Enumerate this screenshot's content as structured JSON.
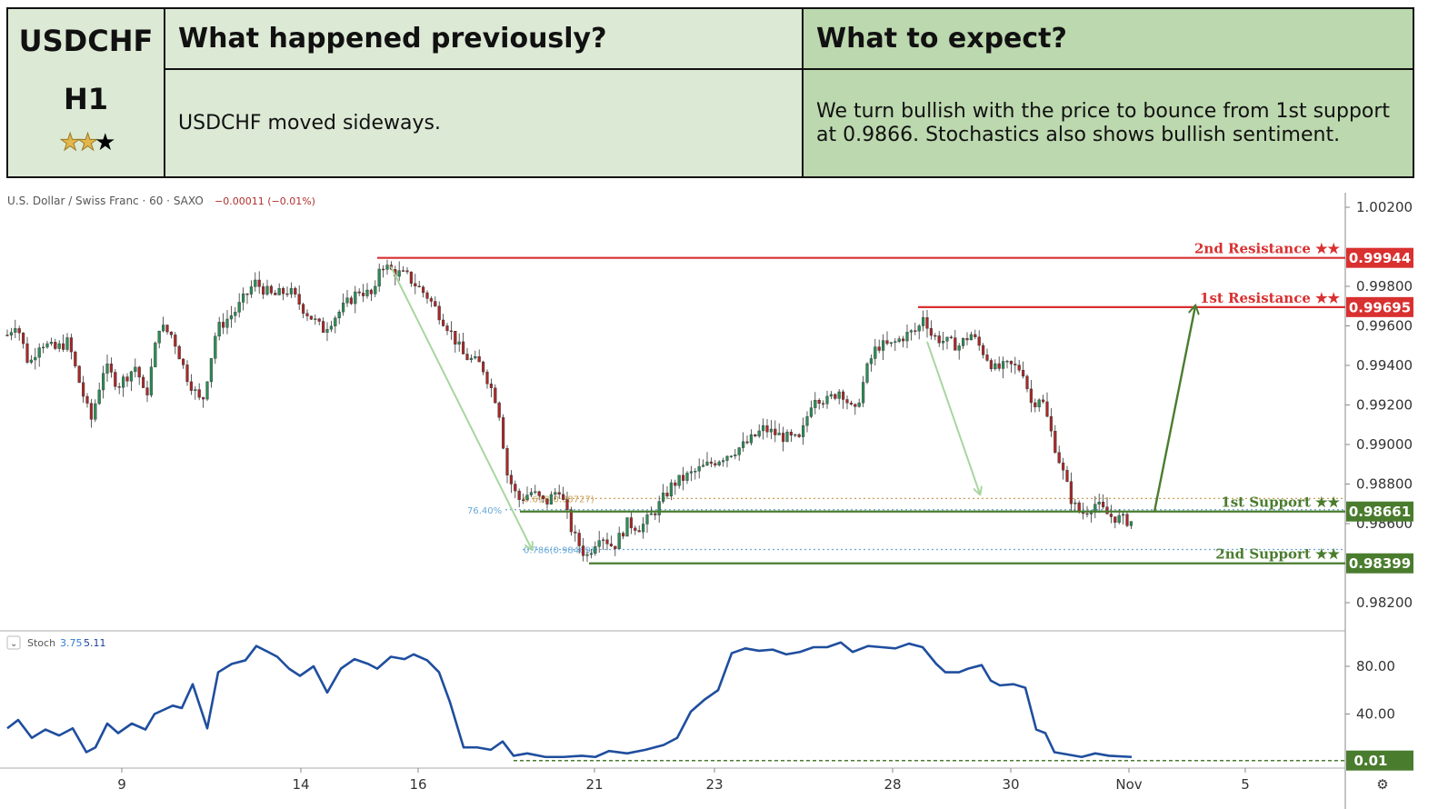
{
  "header": {
    "symbol": "USDCHF",
    "timeframe": "H1",
    "rating": {
      "filled": 2,
      "total": 3
    },
    "previous_title": "What happened previously?",
    "previous_text": "USDCHF moved sideways.",
    "expect_title": "What to expect?",
    "expect_text": "We turn bullish with the price to bounce from 1st support at 0.9866. Stochastics also shows bullish sentiment."
  },
  "chart_info": {
    "instrument": "U.S. Dollar / Swiss Franc · 60 · SAXO",
    "change": "−0.00011 (−0.01%)",
    "stoch_label": "Stoch",
    "stoch_k": "3.75",
    "stoch_d": "5.11",
    "settings_icon": "gear-icon"
  },
  "chart_data": [
    {
      "type": "candlestick",
      "x_labels": [
        "9",
        "14",
        "16",
        "21",
        "23",
        "28",
        "30",
        "Nov",
        "5"
      ],
      "y_ticks": [
        "1.00200",
        "0.99800",
        "0.99600",
        "0.99400",
        "0.99200",
        "0.99000",
        "0.98800",
        "0.98600",
        "0.98200"
      ],
      "ylim": [
        0.981,
        1.0025
      ],
      "price_path": [
        [
          0,
          0.995
        ],
        [
          18,
          0.9962
        ],
        [
          32,
          0.994
        ],
        [
          44,
          0.9952
        ],
        [
          60,
          0.9948
        ],
        [
          75,
          0.9952
        ],
        [
          85,
          0.9935
        ],
        [
          100,
          0.9912
        ],
        [
          115,
          0.994
        ],
        [
          130,
          0.993
        ],
        [
          150,
          0.994
        ],
        [
          160,
          0.9922
        ],
        [
          175,
          0.996
        ],
        [
          190,
          0.9955
        ],
        [
          205,
          0.9935
        ],
        [
          222,
          0.992
        ],
        [
          238,
          0.9958
        ],
        [
          260,
          0.9968
        ],
        [
          280,
          0.9982
        ],
        [
          300,
          0.9975
        ],
        [
          318,
          0.9978
        ],
        [
          335,
          0.9968
        ],
        [
          355,
          0.9958
        ],
        [
          375,
          0.9968
        ],
        [
          395,
          0.9978
        ],
        [
          412,
          0.9975
        ],
        [
          418,
          0.9992
        ],
        [
          430,
          0.9988
        ],
        [
          448,
          0.9985
        ],
        [
          470,
          0.9975
        ],
        [
          492,
          0.996
        ],
        [
          510,
          0.9945
        ],
        [
          530,
          0.994
        ],
        [
          548,
          0.992
        ],
        [
          558,
          0.9885
        ],
        [
          570,
          0.9872
        ],
        [
          585,
          0.9876
        ],
        [
          600,
          0.987
        ],
        [
          615,
          0.9878
        ],
        [
          630,
          0.9855
        ],
        [
          645,
          0.9843
        ],
        [
          660,
          0.9855
        ],
        [
          675,
          0.9848
        ],
        [
          690,
          0.986
        ],
        [
          705,
          0.9858
        ],
        [
          720,
          0.9866
        ],
        [
          740,
          0.988
        ],
        [
          760,
          0.9885
        ],
        [
          780,
          0.989
        ],
        [
          800,
          0.9895
        ],
        [
          820,
          0.99
        ],
        [
          840,
          0.9908
        ],
        [
          860,
          0.9904
        ],
        [
          880,
          0.9902
        ],
        [
          895,
          0.9925
        ],
        [
          910,
          0.9922
        ],
        [
          925,
          0.9928
        ],
        [
          940,
          0.9915
        ],
        [
          955,
          0.994
        ],
        [
          965,
          0.995
        ],
        [
          980,
          0.995
        ],
        [
          995,
          0.9955
        ],
        [
          1010,
          0.9958
        ],
        [
          1016,
          0.9966
        ],
        [
          1025,
          0.9955
        ],
        [
          1040,
          0.9952
        ],
        [
          1055,
          0.995
        ],
        [
          1068,
          0.9956
        ],
        [
          1080,
          0.9948
        ],
        [
          1095,
          0.9938
        ],
        [
          1110,
          0.994
        ],
        [
          1125,
          0.9938
        ],
        [
          1135,
          0.992
        ],
        [
          1145,
          0.9925
        ],
        [
          1160,
          0.99
        ],
        [
          1170,
          0.9885
        ],
        [
          1180,
          0.987
        ],
        [
          1190,
          0.9865
        ],
        [
          1205,
          0.987
        ],
        [
          1220,
          0.9864
        ],
        [
          1235,
          0.9862
        ],
        [
          1245,
          0.9861
        ]
      ],
      "horizontal_levels": [
        {
          "label": "2nd Resistance ★★",
          "value": 0.99944,
          "badge": "0.99944",
          "color": "#d93030",
          "from_bar": 415
        },
        {
          "label": "1st Resistance ★★",
          "value": 0.99695,
          "badge": "0.99695",
          "color": "#d93030",
          "from_bar": 1010
        },
        {
          "label": "1st Support ★★",
          "value": 0.98661,
          "badge": "0.98661",
          "color": "#4a7c2e",
          "from_bar": 572
        },
        {
          "label": "2nd Support ★★",
          "value": 0.98399,
          "badge": "0.98399",
          "color": "#4a7c2e",
          "from_bar": 648
        }
      ],
      "fibonacci": [
        {
          "label": "76.40%",
          "value": 0.9867,
          "color": "#6aa8d8"
        },
        {
          "label": "0.618(0.98727)",
          "value": 0.98727,
          "color": "#c9a05a"
        },
        {
          "label": "0.786(0.98469)",
          "value": 0.98469,
          "color": "#6aa8d8"
        }
      ],
      "arrows": [
        {
          "from": [
            430,
            0.999
          ],
          "to": [
            585,
            0.9847
          ],
          "color": "#a8d6a0"
        },
        {
          "from": [
            1020,
            0.9952
          ],
          "to": [
            1078,
            0.9875
          ],
          "color": "#a8d6a0"
        },
        {
          "from": [
            1270,
            0.9866
          ],
          "to": [
            1315,
            0.997
          ],
          "color": "#4a7c2e"
        }
      ]
    },
    {
      "type": "line",
      "name": "Stoch",
      "y_ticks": [
        "80.00",
        "40.00"
      ],
      "ylim": [
        0,
        100
      ],
      "current_badge": "0.01",
      "k_path": [
        [
          8,
          28
        ],
        [
          20,
          35
        ],
        [
          35,
          20
        ],
        [
          50,
          27
        ],
        [
          65,
          22
        ],
        [
          80,
          28
        ],
        [
          95,
          8
        ],
        [
          105,
          12
        ],
        [
          118,
          32
        ],
        [
          130,
          24
        ],
        [
          145,
          32
        ],
        [
          160,
          27
        ],
        [
          170,
          40
        ],
        [
          190,
          47
        ],
        [
          200,
          45
        ],
        [
          212,
          65
        ],
        [
          228,
          28
        ],
        [
          240,
          75
        ],
        [
          255,
          82
        ],
        [
          270,
          85
        ],
        [
          282,
          97
        ],
        [
          295,
          92
        ],
        [
          305,
          88
        ],
        [
          318,
          78
        ],
        [
          330,
          72
        ],
        [
          345,
          80
        ],
        [
          360,
          58
        ],
        [
          375,
          78
        ],
        [
          390,
          86
        ],
        [
          405,
          82
        ],
        [
          415,
          78
        ],
        [
          430,
          88
        ],
        [
          445,
          86
        ],
        [
          455,
          90
        ],
        [
          470,
          85
        ],
        [
          483,
          75
        ],
        [
          495,
          50
        ],
        [
          510,
          12
        ],
        [
          525,
          12
        ],
        [
          540,
          10
        ],
        [
          553,
          17
        ],
        [
          565,
          5
        ],
        [
          580,
          7
        ],
        [
          600,
          4
        ],
        [
          620,
          4
        ],
        [
          640,
          5
        ],
        [
          655,
          4
        ],
        [
          670,
          9
        ],
        [
          690,
          7
        ],
        [
          710,
          10
        ],
        [
          730,
          14
        ],
        [
          745,
          20
        ],
        [
          760,
          42
        ],
        [
          775,
          52
        ],
        [
          790,
          60
        ],
        [
          805,
          91
        ],
        [
          820,
          95
        ],
        [
          835,
          93
        ],
        [
          850,
          94
        ],
        [
          865,
          90
        ],
        [
          880,
          92
        ],
        [
          895,
          96
        ],
        [
          910,
          96
        ],
        [
          925,
          100
        ],
        [
          938,
          92
        ],
        [
          955,
          97
        ],
        [
          970,
          96
        ],
        [
          985,
          95
        ],
        [
          1000,
          99
        ],
        [
          1015,
          96
        ],
        [
          1030,
          82
        ],
        [
          1040,
          75
        ],
        [
          1055,
          75
        ],
        [
          1065,
          78
        ],
        [
          1080,
          81
        ],
        [
          1090,
          68
        ],
        [
          1100,
          64
        ],
        [
          1115,
          65
        ],
        [
          1128,
          62
        ],
        [
          1140,
          27
        ],
        [
          1150,
          24
        ],
        [
          1160,
          8
        ],
        [
          1175,
          6
        ],
        [
          1190,
          4
        ],
        [
          1205,
          7
        ],
        [
          1220,
          5
        ],
        [
          1245,
          4
        ]
      ],
      "oversold_line": 1
    }
  ]
}
